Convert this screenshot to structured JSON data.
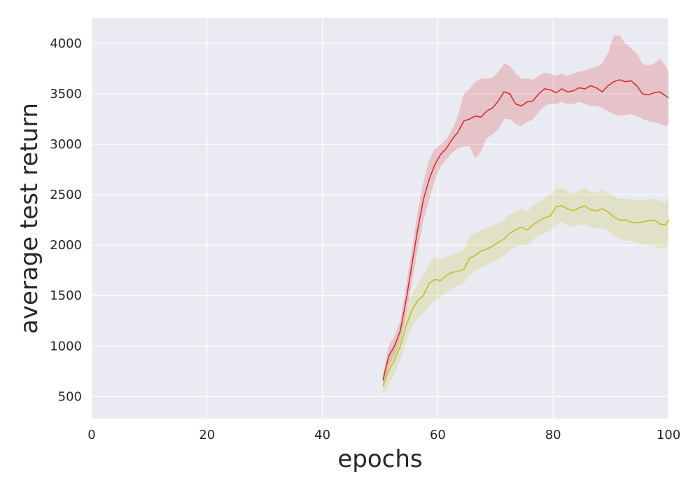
{
  "chart_data": {
    "type": "line",
    "xlabel": "epochs",
    "ylabel": "average test return",
    "xlim": [
      0,
      100
    ],
    "ylim": [
      280,
      4250
    ],
    "xticks": [
      0,
      20,
      40,
      60,
      80,
      100
    ],
    "yticks": [
      500,
      1000,
      1500,
      2000,
      2500,
      3000,
      3500,
      4000
    ],
    "grid": true,
    "background": "#eaeaf2",
    "series": [
      {
        "color": "#d62728",
        "x": [
          50.5,
          51.5,
          52.5,
          53.5,
          54.5,
          55.5,
          56.5,
          57.5,
          58.5,
          59.5,
          60.5,
          61.5,
          62.5,
          63.5,
          64.5,
          65.5,
          66.5,
          67.5,
          68.5,
          69.5,
          70.5,
          71.5,
          72.5,
          73.5,
          74.5,
          75.5,
          76.5,
          77.5,
          78.5,
          79.5,
          80.5,
          81.5,
          82.5,
          83.5,
          84.5,
          85.5,
          86.5,
          87.5,
          88.5,
          89.5,
          90.5,
          91.5,
          92.5,
          93.5,
          94.5,
          95.5,
          96.5,
          97.5,
          98.5,
          99.5,
          100
        ],
        "y": [
          660,
          900,
          1000,
          1150,
          1450,
          1800,
          2150,
          2450,
          2650,
          2800,
          2900,
          2960,
          3050,
          3120,
          3230,
          3250,
          3280,
          3270,
          3330,
          3360,
          3430,
          3520,
          3500,
          3400,
          3380,
          3420,
          3430,
          3500,
          3550,
          3540,
          3510,
          3550,
          3520,
          3530,
          3560,
          3550,
          3580,
          3560,
          3520,
          3580,
          3620,
          3640,
          3620,
          3630,
          3580,
          3500,
          3490,
          3510,
          3520,
          3480,
          3460
        ],
        "lower": [
          600,
          800,
          900,
          1050,
          1300,
          1620,
          1950,
          2250,
          2450,
          2650,
          2780,
          2850,
          2920,
          2960,
          2980,
          2980,
          2860,
          2930,
          3060,
          3100,
          3150,
          3250,
          3250,
          3200,
          3180,
          3220,
          3250,
          3320,
          3380,
          3400,
          3400,
          3420,
          3400,
          3400,
          3420,
          3400,
          3380,
          3380,
          3360,
          3330,
          3300,
          3280,
          3290,
          3300,
          3280,
          3250,
          3230,
          3220,
          3200,
          3180,
          3200
        ],
        "upper": [
          720,
          1000,
          1100,
          1250,
          1600,
          1950,
          2330,
          2620,
          2850,
          2950,
          3000,
          3050,
          3150,
          3280,
          3500,
          3550,
          3620,
          3650,
          3650,
          3660,
          3720,
          3800,
          3780,
          3700,
          3650,
          3650,
          3640,
          3680,
          3710,
          3700,
          3680,
          3700,
          3680,
          3700,
          3720,
          3730,
          3750,
          3770,
          3800,
          3900,
          4080,
          4080,
          4000,
          3950,
          3900,
          3800,
          3780,
          3800,
          3850,
          3780,
          3720
        ]
      },
      {
        "color": "#bcbd22",
        "x": [
          50.5,
          51.5,
          52.5,
          53.5,
          54.5,
          55.5,
          56.5,
          57.5,
          58.5,
          59.5,
          60.5,
          61.5,
          62.5,
          63.5,
          64.5,
          65.5,
          66.5,
          67.5,
          68.5,
          69.5,
          70.5,
          71.5,
          72.5,
          73.5,
          74.5,
          75.5,
          76.5,
          77.5,
          78.5,
          79.5,
          80.5,
          81.5,
          82.5,
          83.5,
          84.5,
          85.5,
          86.5,
          87.5,
          88.5,
          89.5,
          90.5,
          91.5,
          92.5,
          93.5,
          94.5,
          95.5,
          96.5,
          97.5,
          98.5,
          99.5,
          100
        ],
        "y": [
          600,
          760,
          860,
          1000,
          1200,
          1350,
          1450,
          1500,
          1620,
          1660,
          1650,
          1700,
          1730,
          1740,
          1760,
          1870,
          1900,
          1940,
          1960,
          1990,
          2030,
          2060,
          2120,
          2150,
          2180,
          2150,
          2200,
          2240,
          2270,
          2290,
          2380,
          2390,
          2360,
          2340,
          2370,
          2390,
          2350,
          2340,
          2360,
          2330,
          2280,
          2250,
          2250,
          2230,
          2220,
          2230,
          2240,
          2250,
          2210,
          2200,
          2250
        ],
        "lower": [
          520,
          620,
          720,
          860,
          1040,
          1180,
          1280,
          1330,
          1400,
          1450,
          1480,
          1530,
          1570,
          1600,
          1620,
          1700,
          1750,
          1780,
          1800,
          1830,
          1860,
          1900,
          1950,
          1980,
          2000,
          2000,
          2050,
          2100,
          2120,
          2140,
          2200,
          2230,
          2200,
          2180,
          2200,
          2210,
          2180,
          2160,
          2170,
          2150,
          2100,
          2060,
          2050,
          2040,
          2020,
          2010,
          2000,
          1990,
          1970,
          1960,
          2000
        ],
        "upper": [
          660,
          880,
          990,
          1130,
          1330,
          1500,
          1620,
          1700,
          1820,
          1880,
          1850,
          1880,
          1900,
          1930,
          1950,
          2080,
          2120,
          2150,
          2170,
          2180,
          2220,
          2250,
          2310,
          2330,
          2360,
          2330,
          2390,
          2430,
          2470,
          2510,
          2560,
          2570,
          2530,
          2510,
          2540,
          2570,
          2530,
          2520,
          2550,
          2520,
          2490,
          2460,
          2460,
          2450,
          2440,
          2440,
          2450,
          2460,
          2440,
          2430,
          2470
        ]
      }
    ]
  }
}
